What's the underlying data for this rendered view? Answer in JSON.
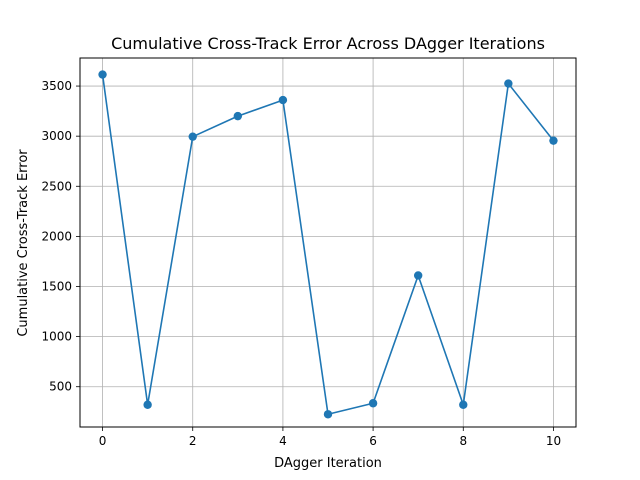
{
  "chart_data": {
    "type": "line",
    "title": "Cumulative Cross-Track Error Across DAgger Iterations",
    "xlabel": "DAgger Iteration",
    "ylabel": "Cumulative Cross-Track Error",
    "x": [
      0,
      1,
      2,
      3,
      4,
      5,
      6,
      7,
      8,
      9,
      10
    ],
    "series": [
      {
        "values": [
          3615,
          320,
          2995,
          3200,
          3360,
          225,
          335,
          1610,
          320,
          3525,
          2955
        ],
        "color": "#1f77b4",
        "marker": "circle"
      }
    ],
    "xlim": [
      -0.5,
      10.5
    ],
    "ylim": [
      98,
      3780
    ],
    "xticks": [
      0,
      2,
      4,
      6,
      8,
      10
    ],
    "yticks": [
      500,
      1000,
      1500,
      2000,
      2500,
      3000,
      3500
    ],
    "xtick_labels": [
      "0",
      "2",
      "4",
      "6",
      "8",
      "10"
    ],
    "ytick_labels": [
      "500",
      "1000",
      "1500",
      "2000",
      "2500",
      "3000",
      "3500"
    ],
    "grid": true,
    "legend": false
  }
}
